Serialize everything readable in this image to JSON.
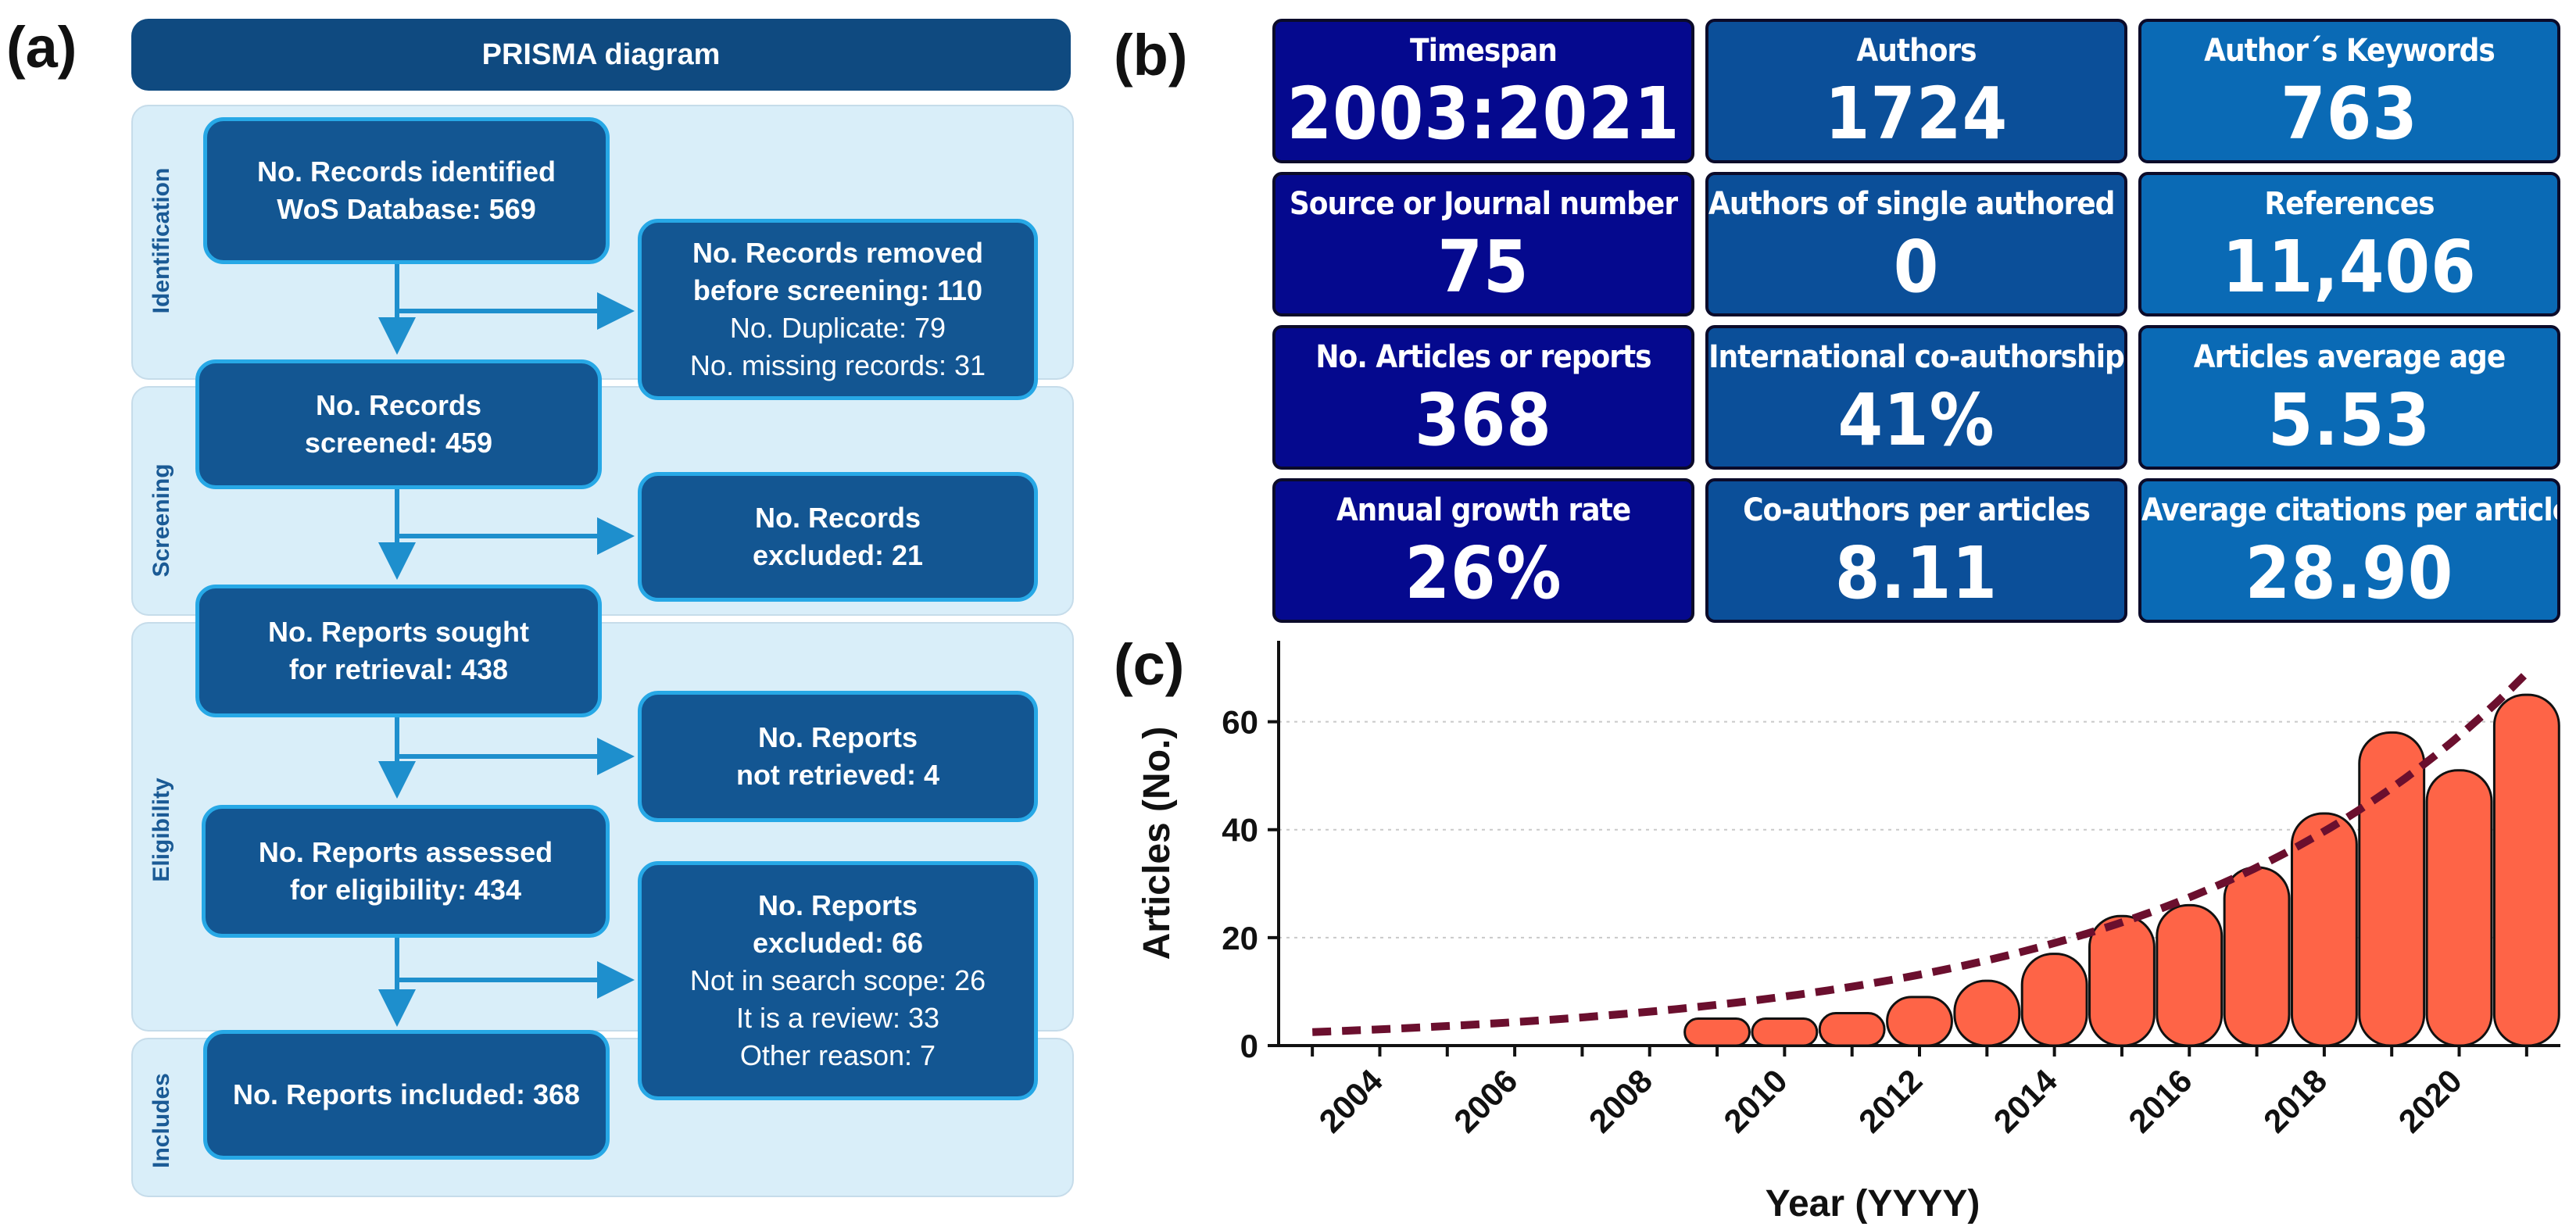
{
  "panel_labels": {
    "a": "(a)",
    "b": "(b)",
    "c": "(c)"
  },
  "prisma": {
    "title": "PRISMA diagram",
    "stages": [
      "Identification",
      "Screening",
      "Eligibility",
      "Includes"
    ],
    "boxes": {
      "identified": [
        "No. Records identified",
        "WoS Database: 569"
      ],
      "removed": [
        "No. Records removed",
        "before screening: 110",
        "No. Duplicate: 79",
        "No. missing records:  31"
      ],
      "screened": [
        "No. Records",
        "screened: 459"
      ],
      "excluded": [
        "No. Records",
        "excluded: 21"
      ],
      "sought": [
        "No. Reports sought",
        "for retrieval: 438"
      ],
      "not_retrieved": [
        "No. Reports",
        "not retrieved: 4"
      ],
      "assessed": [
        "No. Reports assessed",
        "for eligibility: 434"
      ],
      "reports_excluded": [
        "No. Reports",
        "excluded: 66",
        "Not in search scope: 26",
        "It is a review: 33",
        "Other reason: 7"
      ],
      "included": [
        "No. Reports included: 368"
      ]
    },
    "colors": {
      "box": "#135692",
      "border": "#27a8e6",
      "stage_bg": "#d9eef9",
      "arrow": "#1e8fcd"
    }
  },
  "metrics": [
    {
      "label": "Timespan",
      "value": "2003:2021"
    },
    {
      "label": "Authors",
      "value": "1724"
    },
    {
      "label": "Author´s Keywords",
      "value": "763"
    },
    {
      "label": "Source or Journal number",
      "value": "75"
    },
    {
      "label": "Authors of single authored docs",
      "value": "0"
    },
    {
      "label": "References",
      "value": "11,406"
    },
    {
      "label": "No. Articles or reports",
      "value": "368"
    },
    {
      "label": "International co-authorship",
      "value": "41%"
    },
    {
      "label": "Articles average age",
      "value": "5.53"
    },
    {
      "label": "Annual growth rate",
      "value": "26%"
    },
    {
      "label": "Co-authors per articles",
      "value": "8.11"
    },
    {
      "label": "Average citations per articles",
      "value": "28.90"
    }
  ],
  "chart_data": {
    "type": "bar",
    "title": "",
    "xlabel": "Year (YYYY)",
    "ylabel": "Articles (No.)",
    "x": [
      2009,
      2010,
      2011,
      2012,
      2013,
      2014,
      2015,
      2016,
      2017,
      2018,
      2019,
      2020,
      2021
    ],
    "values": [
      5,
      5,
      6,
      9,
      12,
      17,
      24,
      26,
      33,
      43,
      58,
      51,
      65
    ],
    "trend": {
      "type": "exponential",
      "style": "dashed",
      "x": [
        2003,
        2021
      ],
      "y_start": 2.5,
      "y_end": 69,
      "color": "#6b0f2e"
    },
    "xlim": [
      2003,
      2021
    ],
    "ylim": [
      0,
      75
    ],
    "xticks": [
      "2004",
      "2006",
      "2008",
      "2010",
      "2012",
      "2014",
      "2016",
      "2018",
      "2020"
    ],
    "yticks": [
      "0",
      "20",
      "40",
      "60"
    ],
    "grid": true,
    "bar_color": "#fe6447"
  }
}
